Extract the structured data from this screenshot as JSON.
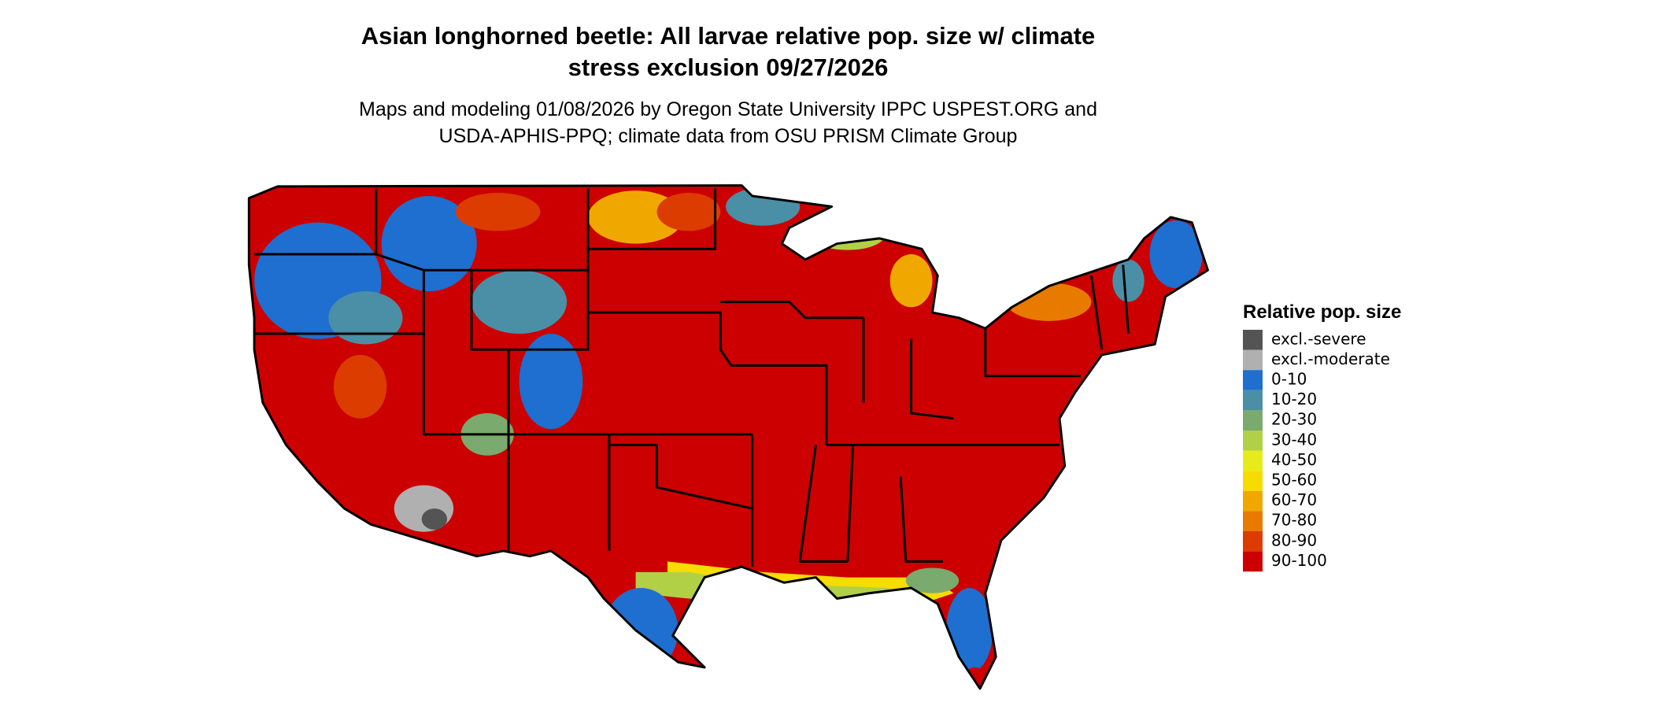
{
  "title": [
    "Asian longhorned beetle: All larvae relative pop. size w/ climate",
    "stress exclusion 09/27/2026"
  ],
  "subtitle": [
    "Maps and modeling 01/08/2026 by Oregon State University IPPC USPEST.ORG and",
    "USDA-APHIS-PPQ; climate data from OSU PRISM Climate Group"
  ],
  "legend": {
    "title": "Relative pop. size",
    "items": [
      {
        "label": "excl.-severe",
        "color": "#545454"
      },
      {
        "label": "excl.-moderate",
        "color": "#b0b0b0"
      },
      {
        "label": "0-10",
        "color": "#1e6fd0"
      },
      {
        "label": "10-20",
        "color": "#4a8fa6"
      },
      {
        "label": "20-30",
        "color": "#7aaa6e"
      },
      {
        "label": "30-40",
        "color": "#b2d046"
      },
      {
        "label": "40-50",
        "color": "#e6ec1a"
      },
      {
        "label": "50-60",
        "color": "#f7dc00"
      },
      {
        "label": "60-70",
        "color": "#f0a800"
      },
      {
        "label": "70-80",
        "color": "#e87a00"
      },
      {
        "label": "80-90",
        "color": "#dc3c00"
      },
      {
        "label": "90-100",
        "color": "#cc0000"
      }
    ]
  }
}
